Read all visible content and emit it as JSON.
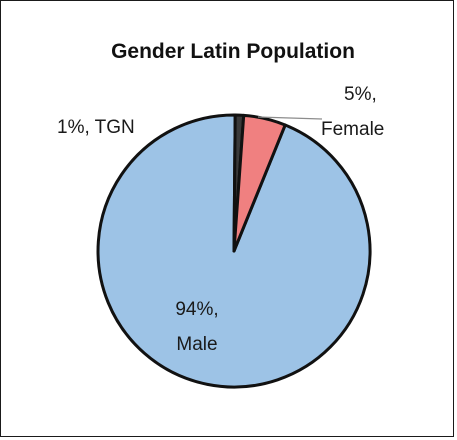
{
  "chart_data": {
    "type": "pie",
    "title": "Gender Latin Population",
    "slices": [
      {
        "label": "Male",
        "percent_label": "94%",
        "value": 94,
        "color": "#9dc3e6"
      },
      {
        "label": "TGN",
        "percent_label": "1%",
        "value": 1,
        "color": "#3a3a3a"
      },
      {
        "label": "Female",
        "percent_label": "5%",
        "value": 5,
        "color": "#f08080"
      }
    ],
    "data_labels": [
      {
        "text": "1%, TGN"
      },
      {
        "line1": "5%,",
        "line2": "Female"
      },
      {
        "line1": "94%,",
        "line2": "Male"
      }
    ],
    "legend": "none"
  }
}
